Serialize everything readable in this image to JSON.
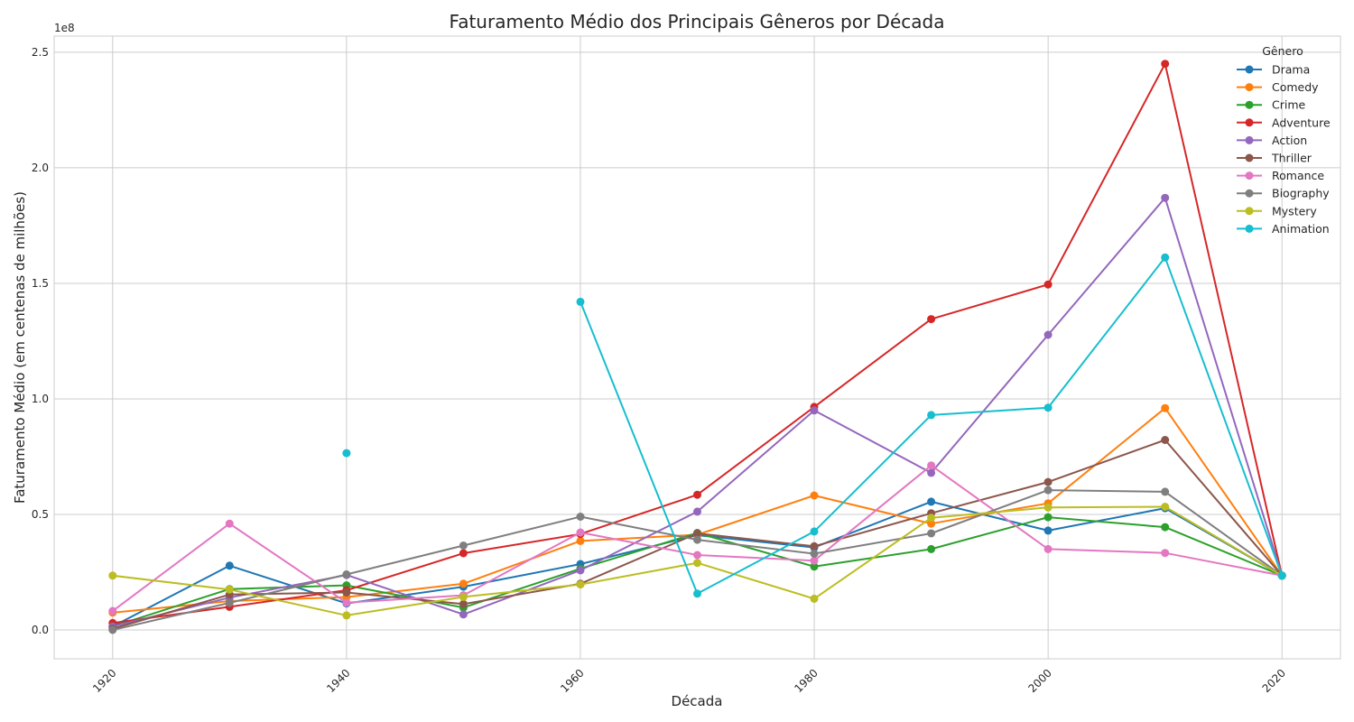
{
  "chart_data": {
    "type": "line",
    "title": "Faturamento Médio dos Principais Gêneros por Década",
    "xlabel": "Década",
    "ylabel": "Faturamento Médio (em centenas de milhões)",
    "y_offset_text": "1e8",
    "legend_title": "Gênero",
    "legend_position": "top-right",
    "grid": true,
    "xlim": [
      1915,
      2025
    ],
    "ylim": [
      -12500000,
      257000000
    ],
    "x_ticks": [
      {
        "value": 1920,
        "label": "1920"
      },
      {
        "value": 1940,
        "label": "1940"
      },
      {
        "value": 1960,
        "label": "1960"
      },
      {
        "value": 1980,
        "label": "1980"
      },
      {
        "value": 2000,
        "label": "2000"
      },
      {
        "value": 2020,
        "label": "2020"
      }
    ],
    "y_ticks": [
      {
        "value": 0,
        "label": "0.0"
      },
      {
        "value": 50000000,
        "label": "0.5"
      },
      {
        "value": 100000000,
        "label": "1.0"
      },
      {
        "value": 150000000,
        "label": "1.5"
      },
      {
        "value": 200000000,
        "label": "2.0"
      },
      {
        "value": 250000000,
        "label": "2.5"
      }
    ],
    "x": [
      1920,
      1930,
      1940,
      1950,
      1960,
      1970,
      1980,
      1990,
      2000,
      2010,
      2020
    ],
    "series": [
      {
        "name": "Drama",
        "color": "#1f77b4",
        "values": [
          1500000,
          27800000,
          11500000,
          18700000,
          28500000,
          41000000,
          35700000,
          55500000,
          43000000,
          52700000,
          23500000
        ]
      },
      {
        "name": "Comedy",
        "color": "#ff7f0e",
        "values": [
          7500000,
          12500000,
          14200000,
          20000000,
          38500000,
          41200000,
          58200000,
          46000000,
          54800000,
          96000000,
          23500000
        ]
      },
      {
        "name": "Crime",
        "color": "#2ca02c",
        "values": [
          1500000,
          17700000,
          19300000,
          9700000,
          26500000,
          42000000,
          27400000,
          35000000,
          48800000,
          44500000,
          23500000
        ]
      },
      {
        "name": "Adventure",
        "color": "#d62728",
        "values": [
          3000000,
          10000000,
          17200000,
          33200000,
          41500000,
          58500000,
          96500000,
          134500000,
          149500000,
          245000000,
          23500000
        ]
      },
      {
        "name": "Action",
        "color": "#9467bd",
        "values": [
          1500000,
          14000000,
          23800000,
          6700000,
          25800000,
          51200000,
          95000000,
          68000000,
          127700000,
          187000000,
          23500000
        ]
      },
      {
        "name": "Thriller",
        "color": "#8c564b",
        "values": [
          500000,
          15300000,
          16200000,
          11200000,
          20000000,
          41800000,
          36200000,
          50500000,
          64000000,
          82200000,
          23500000
        ]
      },
      {
        "name": "Romance",
        "color": "#e377c2",
        "values": [
          8200000,
          46000000,
          11800000,
          15000000,
          42200000,
          32400000,
          30000000,
          71200000,
          35000000,
          33300000,
          23500000
        ]
      },
      {
        "name": "Biography",
        "color": "#7f7f7f",
        "values": [
          0,
          11700000,
          24000000,
          36500000,
          49000000,
          39000000,
          33000000,
          41800000,
          60500000,
          59800000,
          23500000
        ]
      },
      {
        "name": "Mystery",
        "color": "#bcbd22",
        "values": [
          23500000,
          17500000,
          6300000,
          14300000,
          19700000,
          29000000,
          13500000,
          48500000,
          53000000,
          53300000,
          23500000
        ]
      },
      {
        "name": "Animation",
        "color": "#17becf",
        "values": [
          null,
          null,
          76500000,
          null,
          142000000,
          15700000,
          42600000,
          93000000,
          96200000,
          161200000,
          23500000
        ]
      }
    ]
  }
}
